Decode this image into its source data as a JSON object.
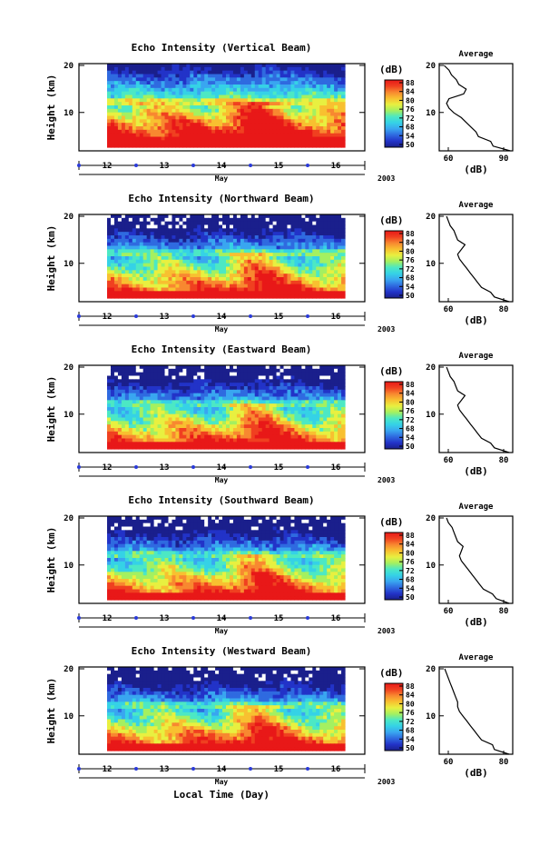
{
  "figure": {
    "x_axis_label": "Local Time (Day)",
    "month_label": "May",
    "year_label": "2003",
    "colorbar_unit": "(dB)",
    "colorbar_ticks": [
      50,
      54,
      68,
      72,
      76,
      80,
      84,
      88
    ],
    "average_title": "Average",
    "average_xlabel": "(dB)",
    "day_ticks": [
      "12",
      "13",
      "14",
      "15",
      "16"
    ],
    "height_ticks": [
      "10",
      "20"
    ]
  },
  "colors": {
    "colormap": [
      "#1a1f8c",
      "#2233c8",
      "#2f6ae0",
      "#39a6f0",
      "#35d2e6",
      "#4ce8c4",
      "#a4f060",
      "#e8f040",
      "#f8c030",
      "#f88830",
      "#f04020",
      "#e81818"
    ],
    "tick_marker": "#2a3ad8",
    "frame": "#000000"
  },
  "chart_data": [
    {
      "type": "heatmap",
      "title": "Echo Intensity (Vertical Beam)",
      "ylabel": "Height (km)",
      "xlim": [
        11.5,
        16.5
      ],
      "ylim": [
        2,
        20
      ],
      "data_x_range": [
        12.0,
        16.3
      ],
      "colorbar_range": [
        50,
        88
      ],
      "profile": {
        "xlim": [
          60,
          90
        ],
        "xticks": [
          "60",
          "90"
        ],
        "height": [
          2,
          3,
          4,
          5,
          6,
          7,
          8,
          9,
          10,
          11,
          12,
          13,
          14,
          15,
          16,
          17,
          18,
          19,
          20
        ],
        "value": [
          89,
          82,
          81,
          76,
          75,
          73,
          71,
          69,
          66,
          64,
          63,
          64,
          70,
          71,
          68,
          67,
          65,
          64,
          62
        ]
      }
    },
    {
      "type": "heatmap",
      "title": "Echo Intensity (Northward Beam)",
      "ylabel": "Height (km)",
      "xlim": [
        11.5,
        16.5
      ],
      "ylim": [
        2,
        20
      ],
      "data_x_range": [
        12.0,
        16.3
      ],
      "colorbar_range": [
        50,
        88
      ],
      "profile": {
        "xlim": [
          50,
          90
        ],
        "xticks": [
          "60",
          "80"
        ],
        "height": [
          2,
          3,
          4,
          5,
          6,
          7,
          8,
          9,
          10,
          11,
          12,
          13,
          14,
          15,
          16,
          17,
          18,
          19,
          20
        ],
        "value": [
          88,
          80,
          78,
          73,
          71,
          69,
          67,
          65,
          63,
          61,
          60,
          62,
          64,
          60,
          59,
          58,
          56,
          55,
          54
        ]
      }
    },
    {
      "type": "heatmap",
      "title": "Echo Intensity (Eastward Beam)",
      "ylabel": "Height (km)",
      "xlim": [
        50,
        90
      ],
      "ylim": [
        2,
        20
      ],
      "data_x_range": [
        12.0,
        16.3
      ],
      "colorbar_range": [
        50,
        88
      ],
      "xlim_time": [
        11.5,
        16.5
      ],
      "profile": {
        "xlim": [
          50,
          90
        ],
        "xticks": [
          "60",
          "80"
        ],
        "height": [
          2,
          3,
          4,
          5,
          6,
          7,
          8,
          9,
          10,
          11,
          12,
          13,
          14,
          15,
          16,
          17,
          18,
          19,
          20
        ],
        "value": [
          88,
          80,
          78,
          73,
          71,
          69,
          67,
          65,
          63,
          61,
          60,
          62,
          64,
          60,
          59,
          58,
          56,
          55,
          54
        ]
      }
    },
    {
      "type": "heatmap",
      "title": "Echo Intensity (Southward Beam)",
      "ylabel": "Height (km)",
      "xlim": [
        11.5,
        16.5
      ],
      "ylim": [
        2,
        20
      ],
      "data_x_range": [
        12.0,
        16.3
      ],
      "colorbar_range": [
        50,
        88
      ],
      "profile": {
        "xlim": [
          50,
          90
        ],
        "xticks": [
          "60",
          "80"
        ],
        "height": [
          2,
          3,
          4,
          5,
          6,
          7,
          8,
          9,
          10,
          11,
          12,
          13,
          14,
          15,
          16,
          17,
          18,
          19,
          20
        ],
        "value": [
          88,
          81,
          79,
          74,
          72,
          70,
          68,
          66,
          64,
          62,
          61,
          62,
          63,
          60,
          59,
          58,
          57,
          55,
          54
        ]
      }
    },
    {
      "type": "heatmap",
      "title": "Echo Intensity (Westward Beam)",
      "ylabel": "Height (km)",
      "xlim": [
        11.5,
        16.5
      ],
      "ylim": [
        2,
        20
      ],
      "data_x_range": [
        12.0,
        16.3
      ],
      "colorbar_range": [
        50,
        88
      ],
      "profile": {
        "xlim": [
          50,
          90
        ],
        "xticks": [
          "60",
          "80"
        ],
        "height": [
          2,
          3,
          4,
          5,
          6,
          7,
          8,
          9,
          10,
          11,
          12,
          13,
          14,
          15,
          16,
          17,
          18,
          19,
          20
        ],
        "value": [
          88,
          80,
          79,
          73,
          71,
          69,
          67,
          65,
          63,
          61,
          60,
          60,
          59,
          58,
          57,
          56,
          55,
          54,
          53
        ]
      }
    }
  ]
}
